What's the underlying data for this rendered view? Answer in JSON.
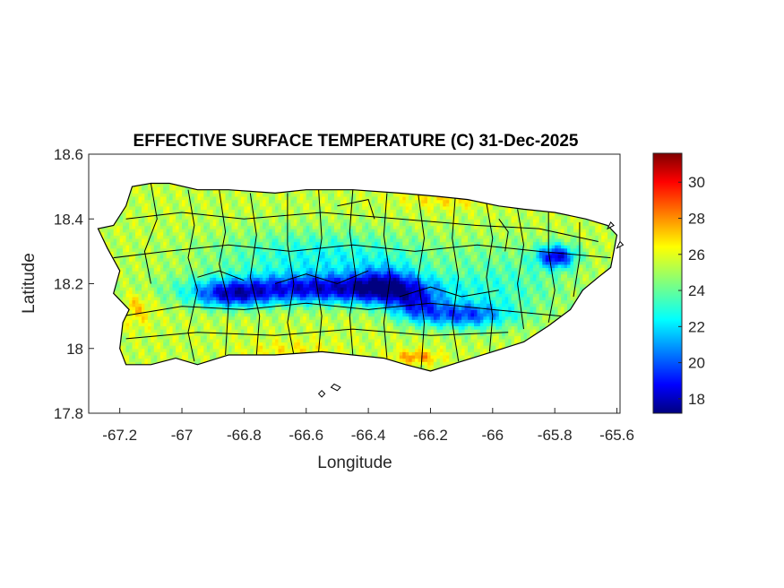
{
  "map": {
    "title": "EFFECTIVE SURFACE TEMPERATURE (C) 31-Dec-2025",
    "xlabel": "Longitude",
    "ylabel": "Latitude",
    "xlim": [
      -67.3,
      -65.59
    ],
    "ylim": [
      17.8,
      18.6
    ],
    "xticks": [
      -67.2,
      -67,
      -66.8,
      -66.6,
      -66.4,
      -66.2,
      -66,
      -65.8,
      -65.6
    ],
    "yticks": [
      17.8,
      18,
      18.2,
      18.4,
      18.6
    ],
    "colormap": "jet",
    "clim": [
      17.2,
      31.6
    ],
    "colorbar_ticks": [
      18,
      20,
      22,
      24,
      26,
      28,
      30
    ],
    "colors": {
      "low": "#00007f",
      "mid": "#7fff7f",
      "high": "#7f0000",
      "outline": "#000000"
    },
    "coastline": [
      [
        -67.27,
        18.37
      ],
      [
        -67.22,
        18.38
      ],
      [
        -67.18,
        18.44
      ],
      [
        -67.16,
        18.5
      ],
      [
        -67.1,
        18.51
      ],
      [
        -67.04,
        18.51
      ],
      [
        -66.95,
        18.49
      ],
      [
        -66.85,
        18.49
      ],
      [
        -66.7,
        18.48
      ],
      [
        -66.6,
        18.49
      ],
      [
        -66.45,
        18.49
      ],
      [
        -66.3,
        18.48
      ],
      [
        -66.18,
        18.47
      ],
      [
        -66.08,
        18.46
      ],
      [
        -65.98,
        18.44
      ],
      [
        -65.9,
        18.43
      ],
      [
        -65.8,
        18.42
      ],
      [
        -65.7,
        18.4
      ],
      [
        -65.63,
        18.38
      ],
      [
        -65.6,
        18.35
      ],
      [
        -65.61,
        18.3
      ],
      [
        -65.62,
        18.25
      ],
      [
        -65.66,
        18.22
      ],
      [
        -65.71,
        18.18
      ],
      [
        -65.75,
        18.12
      ],
      [
        -65.82,
        18.07
      ],
      [
        -65.9,
        18.02
      ],
      [
        -66.0,
        17.99
      ],
      [
        -66.1,
        17.96
      ],
      [
        -66.2,
        17.93
      ],
      [
        -66.28,
        17.95
      ],
      [
        -66.35,
        17.97
      ],
      [
        -66.45,
        17.98
      ],
      [
        -66.55,
        17.99
      ],
      [
        -66.7,
        17.98
      ],
      [
        -66.85,
        17.98
      ],
      [
        -66.95,
        17.95
      ],
      [
        -67.02,
        17.97
      ],
      [
        -67.1,
        17.95
      ],
      [
        -67.18,
        17.95
      ],
      [
        -67.2,
        18.0
      ],
      [
        -67.19,
        18.08
      ],
      [
        -67.17,
        18.12
      ],
      [
        -67.22,
        18.17
      ],
      [
        -67.2,
        18.24
      ],
      [
        -67.24,
        18.31
      ]
    ],
    "cold_spots": [
      {
        "lon": -66.55,
        "lat": 18.18,
        "rx": 0.36,
        "ry": 0.045,
        "depth": 6.5
      },
      {
        "lon": -66.85,
        "lat": 18.16,
        "rx": 0.12,
        "ry": 0.04,
        "depth": 4.5
      },
      {
        "lon": -66.35,
        "lat": 18.19,
        "rx": 0.1,
        "ry": 0.06,
        "depth": 4.0
      },
      {
        "lon": -66.1,
        "lat": 18.1,
        "rx": 0.14,
        "ry": 0.04,
        "depth": 5.0
      },
      {
        "lon": -66.25,
        "lat": 18.13,
        "rx": 0.08,
        "ry": 0.05,
        "depth": 4.0
      },
      {
        "lon": -65.8,
        "lat": 18.28,
        "rx": 0.06,
        "ry": 0.035,
        "depth": 6.5
      },
      {
        "lon": -66.55,
        "lat": 18.28,
        "rx": 0.35,
        "ry": 0.08,
        "depth": 2.5
      },
      {
        "lon": -65.95,
        "lat": 18.2,
        "rx": 0.2,
        "ry": 0.12,
        "depth": 1.5
      }
    ],
    "warm_spots": [
      {
        "lon": -66.25,
        "lat": 17.97,
        "rx": 0.07,
        "ry": 0.02,
        "depth": 2.5
      },
      {
        "lon": -67.15,
        "lat": 18.12,
        "rx": 0.05,
        "ry": 0.05,
        "depth": 1.5
      },
      {
        "lon": -66.15,
        "lat": 18.46,
        "rx": 0.15,
        "ry": 0.03,
        "depth": 1.2
      },
      {
        "lon": -66.65,
        "lat": 17.99,
        "rx": 0.15,
        "ry": 0.03,
        "depth": 1.0
      }
    ],
    "base_temperature": 25.3,
    "municipio_lines": [
      [
        [
          -67.1,
          18.51
        ],
        [
          -67.08,
          18.4
        ],
        [
          -67.12,
          18.3
        ],
        [
          -67.1,
          18.2
        ]
      ],
      [
        [
          -66.98,
          18.49
        ],
        [
          -66.96,
          18.38
        ],
        [
          -66.98,
          18.28
        ],
        [
          -66.95,
          18.18
        ],
        [
          -66.98,
          18.05
        ],
        [
          -66.96,
          17.96
        ]
      ],
      [
        [
          -66.88,
          18.49
        ],
        [
          -66.86,
          18.36
        ],
        [
          -66.88,
          18.26
        ],
        [
          -66.85,
          18.14
        ],
        [
          -66.86,
          17.98
        ]
      ],
      [
        [
          -66.78,
          18.48
        ],
        [
          -66.76,
          18.35
        ],
        [
          -66.78,
          18.22
        ],
        [
          -66.75,
          18.1
        ],
        [
          -66.76,
          17.98
        ]
      ],
      [
        [
          -66.66,
          18.48
        ],
        [
          -66.66,
          18.32
        ],
        [
          -66.64,
          18.2
        ],
        [
          -66.66,
          18.08
        ],
        [
          -66.64,
          17.98
        ]
      ],
      [
        [
          -66.56,
          18.49
        ],
        [
          -66.55,
          18.34
        ],
        [
          -66.57,
          18.22
        ],
        [
          -66.55,
          18.1
        ],
        [
          -66.56,
          17.99
        ]
      ],
      [
        [
          -66.45,
          18.49
        ],
        [
          -66.46,
          18.36
        ],
        [
          -66.44,
          18.22
        ],
        [
          -66.46,
          18.1
        ],
        [
          -66.45,
          17.98
        ]
      ],
      [
        [
          -66.34,
          18.48
        ],
        [
          -66.35,
          18.35
        ],
        [
          -66.33,
          18.22
        ],
        [
          -66.35,
          18.08
        ],
        [
          -66.34,
          17.97
        ]
      ],
      [
        [
          -66.24,
          18.48
        ],
        [
          -66.22,
          18.34
        ],
        [
          -66.24,
          18.22
        ],
        [
          -66.22,
          18.08
        ],
        [
          -66.23,
          17.94
        ]
      ],
      [
        [
          -66.12,
          18.47
        ],
        [
          -66.13,
          18.34
        ],
        [
          -66.11,
          18.22
        ],
        [
          -66.13,
          18.08
        ],
        [
          -66.11,
          17.96
        ]
      ],
      [
        [
          -66.02,
          18.45
        ],
        [
          -66.0,
          18.34
        ],
        [
          -66.02,
          18.22
        ],
        [
          -66.0,
          18.1
        ],
        [
          -66.01,
          17.99
        ]
      ],
      [
        [
          -65.92,
          18.43
        ],
        [
          -65.9,
          18.32
        ],
        [
          -65.92,
          18.2
        ],
        [
          -65.9,
          18.06
        ]
      ],
      [
        [
          -65.82,
          18.42
        ],
        [
          -65.82,
          18.3
        ],
        [
          -65.8,
          18.18
        ],
        [
          -65.82,
          18.08
        ]
      ],
      [
        [
          -65.72,
          18.39
        ],
        [
          -65.72,
          18.28
        ],
        [
          -65.74,
          18.16
        ]
      ],
      [
        [
          -67.22,
          18.28
        ],
        [
          -67.05,
          18.3
        ],
        [
          -66.85,
          18.32
        ],
        [
          -66.65,
          18.3
        ],
        [
          -66.45,
          18.32
        ],
        [
          -66.25,
          18.3
        ],
        [
          -66.05,
          18.32
        ],
        [
          -65.85,
          18.3
        ],
        [
          -65.62,
          18.28
        ]
      ],
      [
        [
          -67.19,
          18.1
        ],
        [
          -67.0,
          18.13
        ],
        [
          -66.8,
          18.12
        ],
        [
          -66.6,
          18.14
        ],
        [
          -66.4,
          18.12
        ],
        [
          -66.2,
          18.14
        ],
        [
          -66.0,
          18.12
        ],
        [
          -65.78,
          18.1
        ]
      ],
      [
        [
          -67.18,
          18.4
        ],
        [
          -67.0,
          18.42
        ],
        [
          -66.8,
          18.4
        ],
        [
          -66.55,
          18.42
        ],
        [
          -66.3,
          18.4
        ],
        [
          -66.05,
          18.38
        ],
        [
          -65.85,
          18.37
        ],
        [
          -65.66,
          18.33
        ]
      ],
      [
        [
          -67.18,
          18.03
        ],
        [
          -66.95,
          18.05
        ],
        [
          -66.7,
          18.04
        ],
        [
          -66.45,
          18.06
        ],
        [
          -66.2,
          18.04
        ],
        [
          -65.95,
          18.05
        ]
      ],
      [
        [
          -66.7,
          18.2
        ],
        [
          -66.6,
          18.23
        ],
        [
          -66.5,
          18.2
        ],
        [
          -66.4,
          18.24
        ]
      ],
      [
        [
          -66.3,
          18.16
        ],
        [
          -66.2,
          18.19
        ],
        [
          -66.1,
          18.16
        ],
        [
          -65.98,
          18.18
        ]
      ],
      [
        [
          -66.95,
          18.22
        ],
        [
          -66.88,
          18.24
        ],
        [
          -66.8,
          18.21
        ]
      ],
      [
        [
          -65.98,
          18.4
        ],
        [
          -65.95,
          18.36
        ],
        [
          -65.96,
          18.3
        ]
      ],
      [
        [
          -66.5,
          18.44
        ],
        [
          -66.4,
          18.46
        ],
        [
          -66.38,
          18.4
        ]
      ]
    ],
    "islets": [
      [
        [
          -66.51,
          17.89
        ],
        [
          -66.52,
          17.88
        ],
        [
          -66.5,
          17.87
        ],
        [
          -66.49,
          17.88
        ]
      ],
      [
        [
          -66.55,
          17.87
        ],
        [
          -66.56,
          17.86
        ],
        [
          -66.55,
          17.85
        ],
        [
          -66.54,
          17.86
        ]
      ],
      [
        [
          -65.59,
          18.33
        ],
        [
          -65.58,
          18.32
        ],
        [
          -65.6,
          18.31
        ]
      ],
      [
        [
          -65.62,
          18.39
        ],
        [
          -65.61,
          18.38
        ],
        [
          -65.63,
          18.37
        ]
      ]
    ]
  }
}
